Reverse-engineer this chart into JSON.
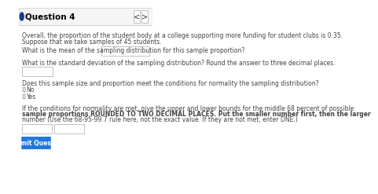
{
  "title": "Question 4",
  "nav_arrows": [
    "<",
    ">"
  ],
  "body_text_1": "Overall, the proportion of the student body at a college supporting more funding for student clubs is 0.35.\nSuppose that we take samples of 45 students.",
  "q1_label": "What is the mean of the sampling distribution for this sample proportion?",
  "q2_label": "What is the standard deviation of the sampling distribution? Round the answer to three decimal places.",
  "q3_label": "Does this sample size and proportion meet the conditions for normality the sampling distribution?",
  "radio_options": [
    "No",
    "Yes"
  ],
  "q4_label_part1": "If the conditions for normality are met, give the upper and lower bounds for the middle 68 percent of possible",
  "q4_label_part2": "sample proportions ROUNDED TO TWO DECIMAL PLACES. Put the smaller number first, then the larger",
  "q4_label_part3": "number (Use the 68-95-99.7 rule here, not the exact value. If they are not met, enter DNE.)",
  "submit_btn_text": "Submit Question",
  "bg_color": "#ffffff",
  "header_bg": "#f0f0f0",
  "header_border": "#cccccc",
  "title_color": "#000000",
  "body_text_color": "#444444",
  "input_border": "#aaaaaa",
  "input_bg": "#ffffff",
  "submit_bg": "#2277dd",
  "submit_text_color": "#ffffff",
  "bullet_color": "#1a3a8a",
  "nav_border": "#aaaaaa",
  "radio_circle_color": "#888888",
  "bold_start": "sample proportions ROUNDED TO TWO DECIMAL PLACES. Put the smaller number first, then the larger"
}
